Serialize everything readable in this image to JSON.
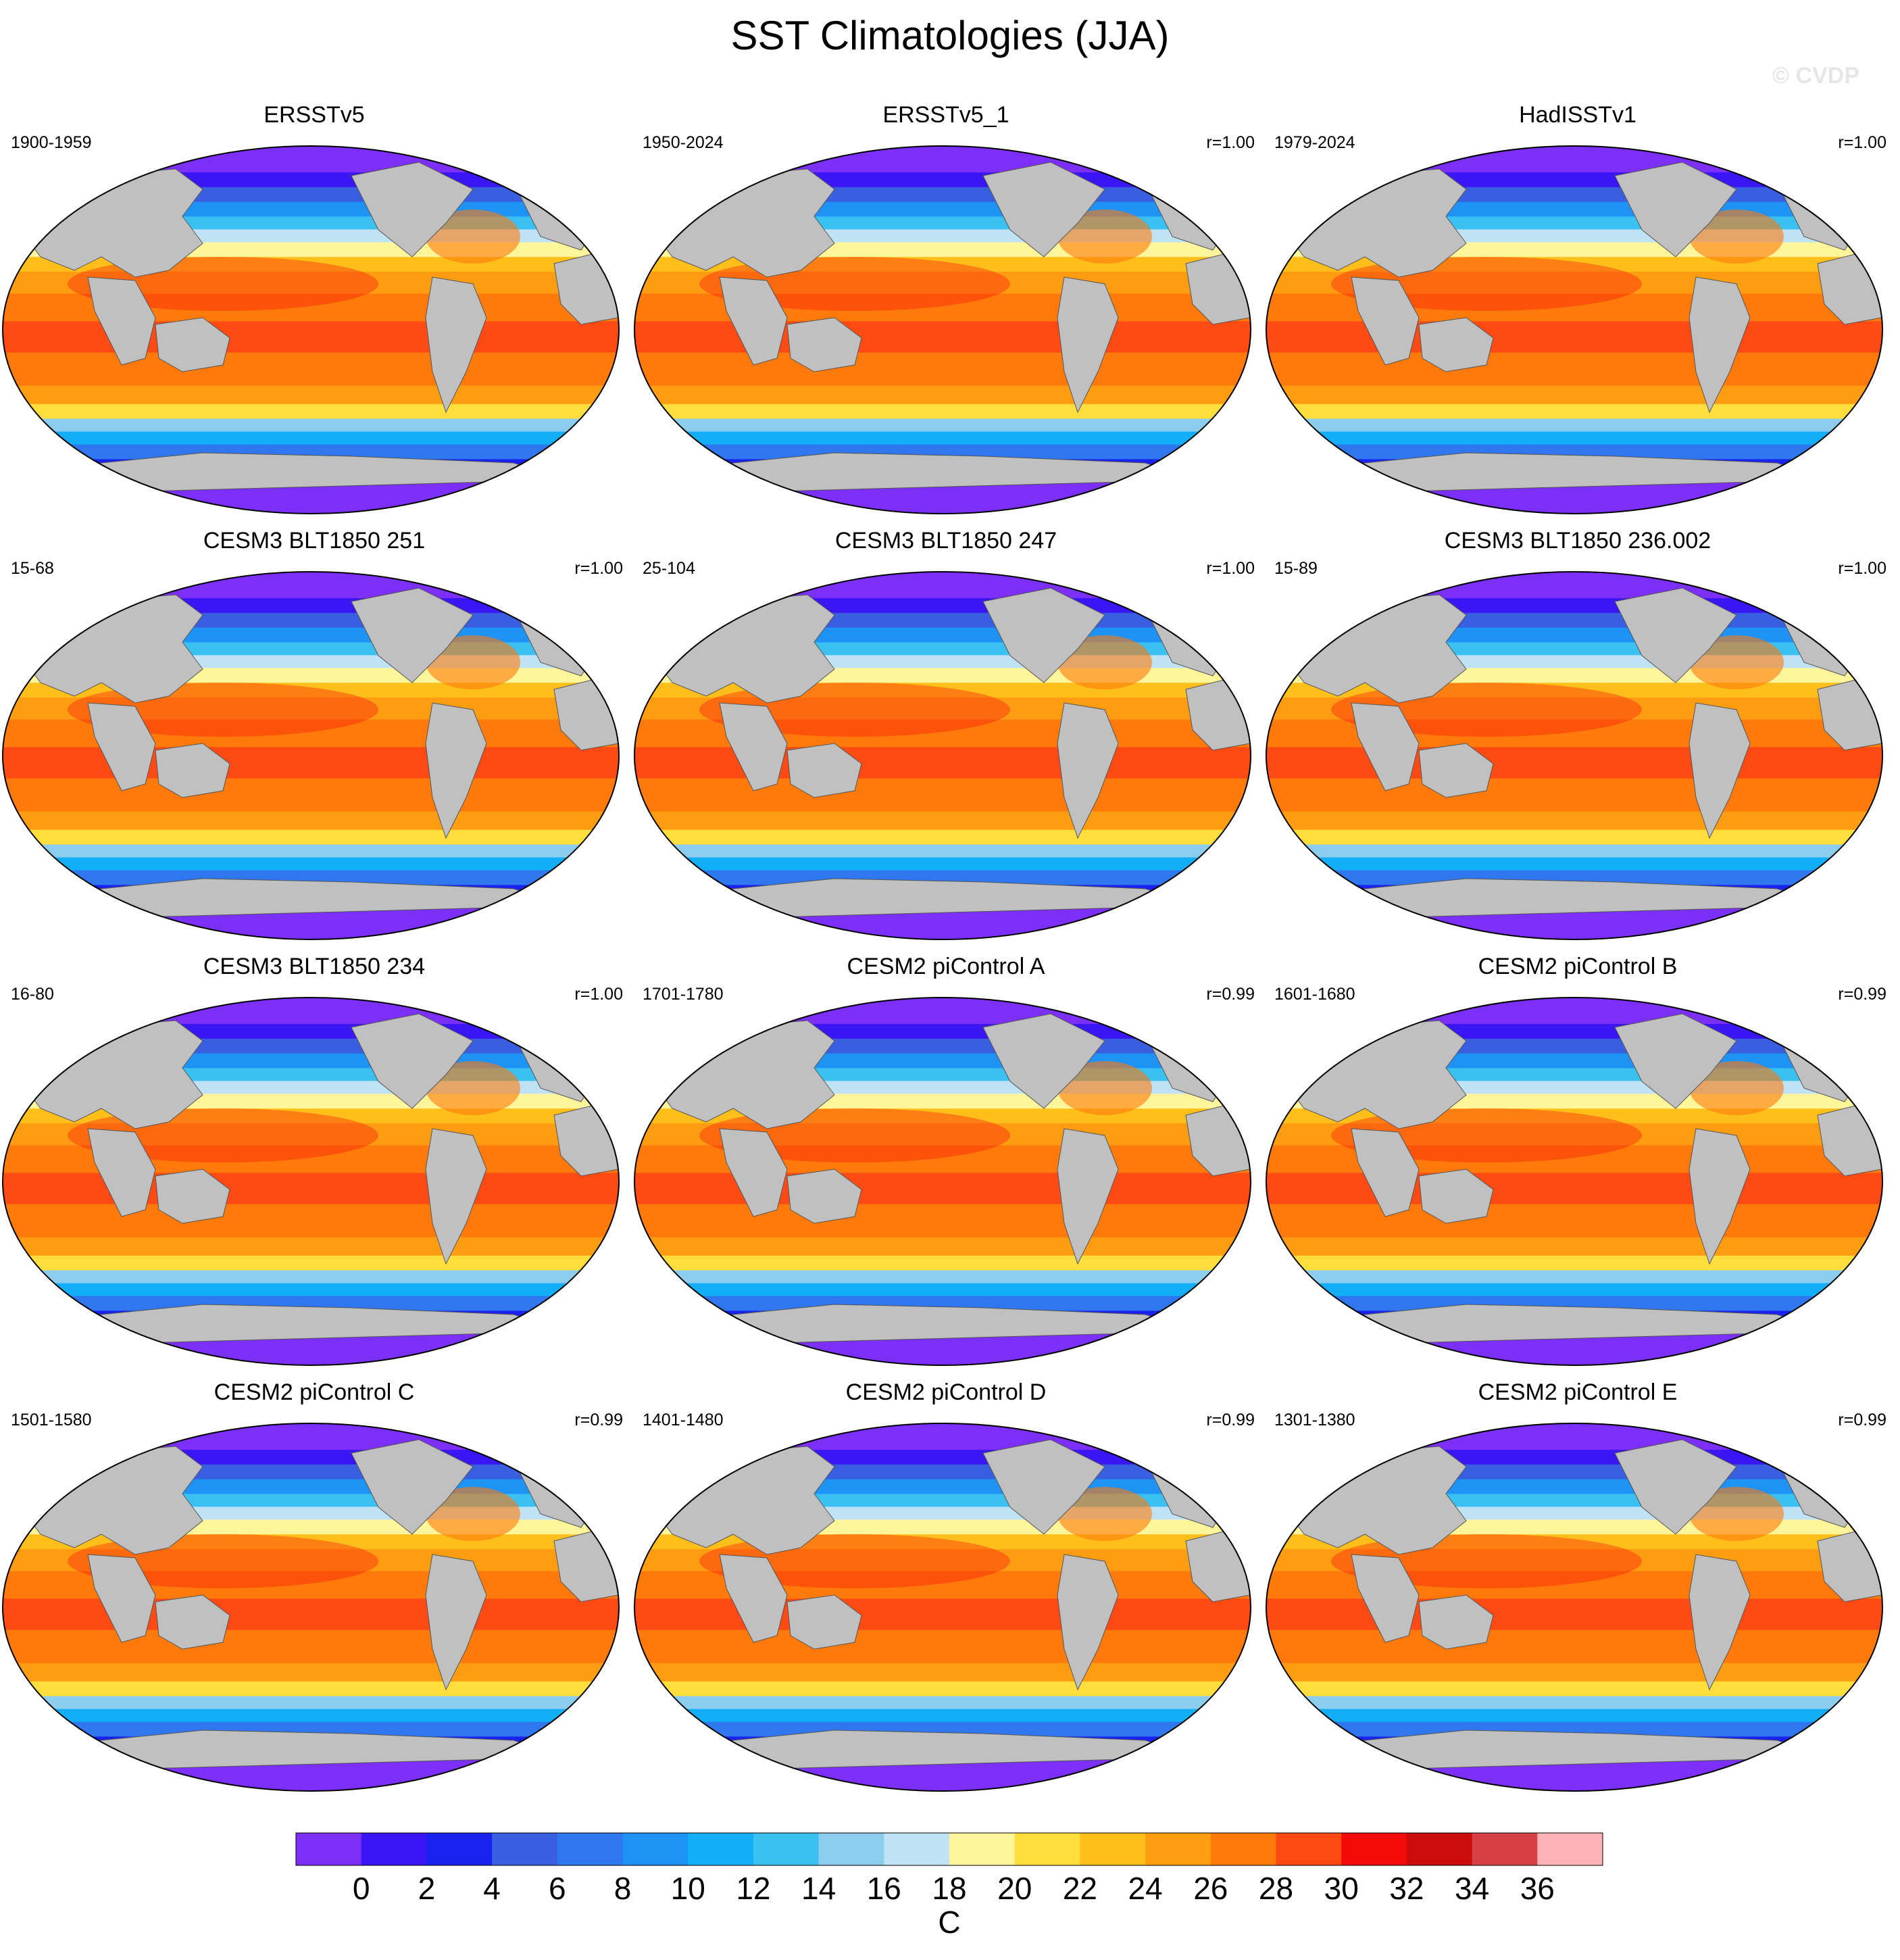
{
  "page": {
    "title": "SST Climatologies (JJA)",
    "watermark": "© CVDP"
  },
  "chart_data": {
    "type": "heatmap",
    "title": "SST Climatologies (JJA)",
    "projection": "Robinson",
    "variable": "SST",
    "season": "JJA",
    "panels": [
      {
        "title": "ERSSTv5",
        "period": "1900-1959",
        "r": ""
      },
      {
        "title": "ERSSTv5_1",
        "period": "1950-2024",
        "r": "r=1.00"
      },
      {
        "title": "HadISSTv1",
        "period": "1979-2024",
        "r": "r=1.00"
      },
      {
        "title": "CESM3 BLT1850 251",
        "period": "15-68",
        "r": "r=1.00"
      },
      {
        "title": "CESM3 BLT1850 247",
        "period": "25-104",
        "r": "r=1.00"
      },
      {
        "title": "CESM3 BLT1850 236.002",
        "period": "15-89",
        "r": "r=1.00"
      },
      {
        "title": "CESM3 BLT1850 234",
        "period": "16-80",
        "r": "r=1.00"
      },
      {
        "title": "CESM2 piControl A",
        "period": "1701-1780",
        "r": "r=0.99"
      },
      {
        "title": "CESM2 piControl B",
        "period": "1601-1680",
        "r": "r=0.99"
      },
      {
        "title": "CESM2 piControl C",
        "period": "1501-1580",
        "r": "r=0.99"
      },
      {
        "title": "CESM2 piControl D",
        "period": "1401-1480",
        "r": "r=0.99"
      },
      {
        "title": "CESM2 piControl E",
        "period": "1301-1380",
        "r": "r=0.99"
      }
    ],
    "colorbar": {
      "label": "C",
      "levels": [
        0,
        2,
        4,
        6,
        8,
        10,
        12,
        14,
        16,
        18,
        20,
        22,
        24,
        26,
        28,
        30,
        32,
        34,
        36
      ],
      "tick_labels": [
        "0",
        "2",
        "4",
        "6",
        "8",
        "10",
        "12",
        "14",
        "16",
        "18",
        "20",
        "22",
        "24",
        "26",
        "28",
        "30",
        "32",
        "34",
        "36"
      ],
      "colors": [
        "#7b2ff7",
        "#3a16f5",
        "#1a22f0",
        "#3a5ee0",
        "#2f77ee",
        "#1e92f5",
        "#12aef8",
        "#3bc0f2",
        "#8ccdee",
        "#bfe3f5",
        "#fff59a",
        "#ffdd3c",
        "#ffbf1a",
        "#ff9d12",
        "#ff7a0a",
        "#ff4a14",
        "#f50a0a",
        "#cc0b0b",
        "#d64045",
        "#ffb3b8"
      ]
    },
    "land_color": "#c0c0c0"
  }
}
